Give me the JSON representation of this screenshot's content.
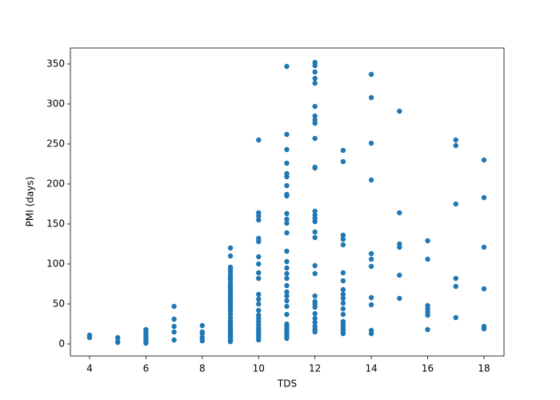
{
  "chart_data": {
    "type": "scatter",
    "xlabel": "TDS",
    "ylabel": "PMI (days)",
    "color": "#1f77b4",
    "x": [
      4,
      4,
      5,
      5,
      5,
      6,
      6,
      6,
      6,
      6,
      6,
      6,
      6,
      7,
      7,
      7,
      7,
      7,
      8,
      8,
      8,
      8,
      8,
      9,
      9,
      9,
      9,
      9,
      9,
      9,
      9,
      9,
      9,
      9,
      9,
      9,
      9,
      9,
      9,
      9,
      9,
      9,
      9,
      9,
      9,
      9,
      9,
      9,
      9,
      9,
      9,
      9,
      9,
      9,
      9,
      9,
      9,
      9,
      9,
      10,
      10,
      10,
      10,
      10,
      10,
      10,
      10,
      10,
      10,
      10,
      10,
      10,
      10,
      10,
      10,
      10,
      10,
      10,
      10,
      10,
      10,
      10,
      10,
      11,
      11,
      11,
      11,
      11,
      11,
      11,
      11,
      11,
      11,
      11,
      11,
      11,
      11,
      11,
      11,
      11,
      11,
      11,
      11,
      11,
      11,
      11,
      11,
      11,
      11,
      11,
      11,
      11,
      11,
      11,
      12,
      12,
      12,
      12,
      12,
      12,
      12,
      12,
      12,
      12,
      12,
      12,
      12,
      12,
      12,
      12,
      12,
      12,
      12,
      12,
      12,
      12,
      12,
      12,
      12,
      12,
      12,
      12,
      12,
      12,
      13,
      13,
      13,
      13,
      13,
      13,
      13,
      13,
      13,
      13,
      13,
      13,
      13,
      13,
      13,
      13,
      13,
      13,
      13,
      14,
      14,
      14,
      14,
      14,
      14,
      14,
      14,
      14,
      14,
      14,
      15,
      15,
      15,
      15,
      15,
      15,
      16,
      16,
      16,
      16,
      16,
      16,
      16,
      17,
      17,
      17,
      17,
      17,
      17,
      18,
      18,
      18,
      18,
      18,
      18
    ],
    "y": [
      8,
      11,
      2,
      3,
      8,
      1,
      3,
      5,
      8,
      11,
      14,
      17,
      18,
      5,
      15,
      22,
      31,
      47,
      4,
      8,
      13,
      15,
      23,
      3,
      5,
      7,
      9,
      11,
      13,
      15,
      17,
      19,
      21,
      23,
      26,
      29,
      33,
      37,
      41,
      44,
      47,
      50,
      53,
      56,
      58,
      61,
      64,
      67,
      70,
      73,
      76,
      80,
      83,
      86,
      90,
      93,
      96,
      110,
      120,
      5,
      8,
      11,
      14,
      17,
      20,
      24,
      28,
      32,
      36,
      42,
      50,
      56,
      62,
      82,
      89,
      100,
      109,
      128,
      132,
      155,
      160,
      164,
      255,
      7,
      10,
      13,
      16,
      19,
      22,
      25,
      37,
      47,
      54,
      60,
      65,
      73,
      82,
      88,
      95,
      103,
      116,
      139,
      151,
      156,
      163,
      185,
      187,
      198,
      209,
      213,
      226,
      243,
      262,
      347,
      15,
      18,
      22,
      27,
      32,
      38,
      46,
      50,
      53,
      60,
      88,
      98,
      133,
      140,
      153,
      157,
      161,
      166,
      220,
      221,
      257,
      276,
      280,
      285,
      297,
      326,
      332,
      340,
      348,
      352,
      13,
      16,
      19,
      22,
      25,
      28,
      37,
      44,
      51,
      57,
      62,
      68,
      79,
      89,
      124,
      131,
      136,
      228,
      242,
      13,
      17,
      49,
      58,
      97,
      106,
      113,
      205,
      251,
      308,
      337,
      57,
      86,
      121,
      125,
      164,
      291,
      18,
      36,
      40,
      44,
      48,
      106,
      129,
      33,
      72,
      82,
      175,
      248,
      255,
      19,
      22,
      69,
      121,
      183,
      230
    ],
    "xlim": [
      3.32,
      18.71
    ],
    "ylim": [
      -15,
      370
    ],
    "xticks": [
      4,
      6,
      8,
      10,
      12,
      14,
      16,
      18
    ],
    "yticks": [
      0,
      50,
      100,
      150,
      200,
      250,
      300,
      350
    ]
  }
}
